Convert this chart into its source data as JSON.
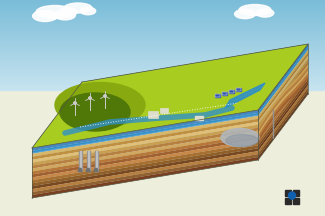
{
  "bg_color": "#eeeedd",
  "sky_top": "#7bbdd8",
  "sky_bottom": "#c8e4f0",
  "ground_green_light": "#a8cc20",
  "ground_green_mid": "#88aa10",
  "ground_green_dark": "#507808",
  "water_blue": "#3090c8",
  "water_light": "#60b8e0",
  "layer_colors_front": [
    "#4888c0",
    "#60a8d8",
    "#d8b868",
    "#c09040",
    "#e0c078",
    "#c8a050",
    "#b88040",
    "#d0a860",
    "#b87838",
    "#a06030",
    "#c88848",
    "#a87030",
    "#906028",
    "#784820",
    "#b88040",
    "#906030",
    "#784020"
  ],
  "layer_colors_right": [
    "#3878a8",
    "#4898c8",
    "#c8a858",
    "#b08030",
    "#d0b068",
    "#b89040",
    "#a87030",
    "#c09848",
    "#a86828",
    "#906020",
    "#b87838",
    "#986028",
    "#804818",
    "#683818",
    "#a87030",
    "#805020",
    "#683818"
  ],
  "cavern_color": "#b0b8c0",
  "cavern_shadow": "#8090a0",
  "pipe_color": "#909090",
  "pipe_light": "#c0c0c0",
  "logo_dark": "#2a2a2a",
  "logo_blue": "#1060b0",
  "outline_color": "#555544",
  "cloud_color": "#ffffff",
  "turbine_color": "#cccccc",
  "solar_color": "#3355aa",
  "equip_color": "#ddddcc",
  "equip_edge": "#aaaaaa",
  "dot_line": "#ffffff"
}
